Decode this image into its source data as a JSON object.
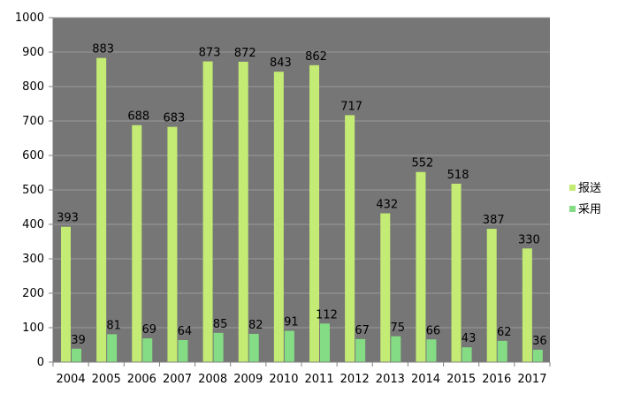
{
  "chart_data": {
    "type": "bar",
    "categories": [
      "2004",
      "2005",
      "2006",
      "2007",
      "2008",
      "2009",
      "2010",
      "2011",
      "2012",
      "2013",
      "2014",
      "2015",
      "2016",
      "2017"
    ],
    "series": [
      {
        "name": "报送",
        "color": "#c4ec74",
        "values": [
          393,
          883,
          688,
          683,
          873,
          872,
          843,
          862,
          717,
          432,
          552,
          518,
          387,
          330
        ]
      },
      {
        "name": "采用",
        "color": "#84dd84",
        "values": [
          39,
          81,
          69,
          64,
          85,
          82,
          91,
          112,
          67,
          75,
          66,
          43,
          62,
          36
        ]
      }
    ],
    "yticks": [
      "0",
      "100",
      "200",
      "300",
      "400",
      "500",
      "600",
      "700",
      "800",
      "900",
      "1000"
    ],
    "ylim": [
      0,
      1000
    ],
    "grid": true,
    "legend_position": "right",
    "plot_background": "#767676",
    "gridline_color": "#9a9a9a",
    "data_labels": true
  }
}
